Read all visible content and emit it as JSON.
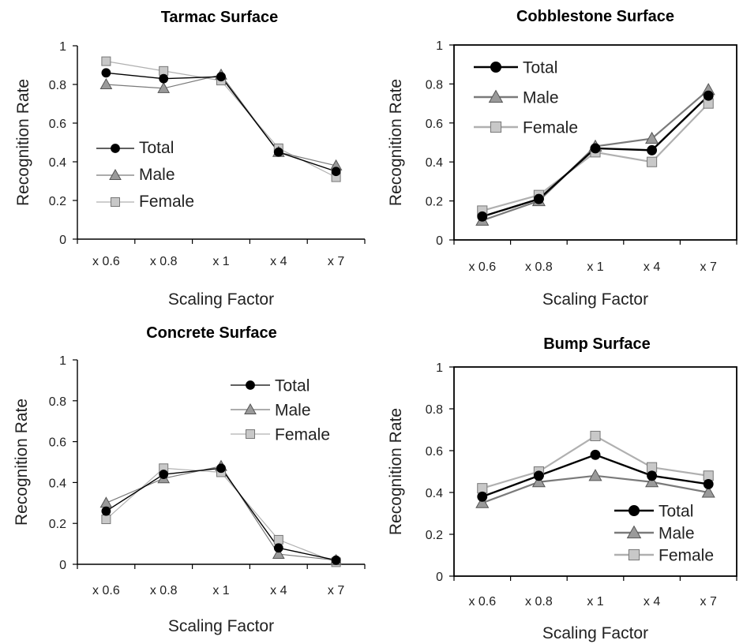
{
  "chart_data": [
    {
      "type": "line",
      "title": "Tarmac Surface",
      "xlabel": "Scaling Factor",
      "ylabel": "Recognition Rate",
      "categories": [
        "x 0.6",
        "x 0.8",
        "x 1",
        "x 4",
        "x 7"
      ],
      "ylim": [
        0,
        1
      ],
      "yticks": [
        "0",
        "0.2",
        "0.4",
        "0.6",
        "0.8",
        "1"
      ],
      "legend_position": "left",
      "series": [
        {
          "name": "Total",
          "values": [
            0.86,
            0.83,
            0.84,
            0.45,
            0.35
          ],
          "color": "#000000",
          "marker": "circle"
        },
        {
          "name": "Male",
          "values": [
            0.8,
            0.78,
            0.85,
            0.45,
            0.38
          ],
          "color": "#7a7a7a",
          "marker": "triangle"
        },
        {
          "name": "Female",
          "values": [
            0.92,
            0.87,
            0.82,
            0.47,
            0.32
          ],
          "color": "#b0b0b0",
          "marker": "square"
        }
      ]
    },
    {
      "type": "line",
      "title": "Cobblestone Surface",
      "xlabel": "Scaling Factor",
      "ylabel": "Recognition Rate",
      "categories": [
        "x 0.6",
        "x 0.8",
        "x 1",
        "x 4",
        "x 7"
      ],
      "ylim": [
        0,
        1
      ],
      "yticks": [
        "0",
        "0.2",
        "0.4",
        "0.6",
        "0.8",
        "1"
      ],
      "legend_position": "top-left",
      "series": [
        {
          "name": "Total",
          "values": [
            0.12,
            0.21,
            0.47,
            0.46,
            0.74
          ],
          "color": "#000000",
          "marker": "circle"
        },
        {
          "name": "Male",
          "values": [
            0.1,
            0.2,
            0.48,
            0.52,
            0.77
          ],
          "color": "#7a7a7a",
          "marker": "triangle"
        },
        {
          "name": "Female",
          "values": [
            0.15,
            0.23,
            0.45,
            0.4,
            0.7
          ],
          "color": "#b0b0b0",
          "marker": "square"
        }
      ]
    },
    {
      "type": "line",
      "title": "Concrete Surface",
      "xlabel": "Scaling Factor",
      "ylabel": "Recognition Rate",
      "categories": [
        "x 0.6",
        "x 0.8",
        "x 1",
        "x 4",
        "x 7"
      ],
      "ylim": [
        0,
        1
      ],
      "yticks": [
        "0",
        "0.2",
        "0.4",
        "0.6",
        "0.8",
        "1"
      ],
      "legend_position": "top-right",
      "series": [
        {
          "name": "Total",
          "values": [
            0.26,
            0.44,
            0.47,
            0.08,
            0.02
          ],
          "color": "#000000",
          "marker": "circle"
        },
        {
          "name": "Male",
          "values": [
            0.3,
            0.42,
            0.48,
            0.05,
            0.02
          ],
          "color": "#7a7a7a",
          "marker": "triangle"
        },
        {
          "name": "Female",
          "values": [
            0.22,
            0.47,
            0.45,
            0.12,
            0.01
          ],
          "color": "#b0b0b0",
          "marker": "square"
        }
      ]
    },
    {
      "type": "line",
      "title": "Bump Surface",
      "xlabel": "Scaling Factor",
      "ylabel": "Recognition Rate",
      "categories": [
        "x 0.6",
        "x 0.8",
        "x 1",
        "x 4",
        "x 7"
      ],
      "ylim": [
        0,
        1
      ],
      "yticks": [
        "0",
        "0.2",
        "0.4",
        "0.6",
        "0.8",
        "1"
      ],
      "legend_position": "bottom-right",
      "series": [
        {
          "name": "Total",
          "values": [
            0.38,
            0.48,
            0.58,
            0.48,
            0.44
          ],
          "color": "#000000",
          "marker": "circle"
        },
        {
          "name": "Male",
          "values": [
            0.35,
            0.45,
            0.48,
            0.45,
            0.4
          ],
          "color": "#7a7a7a",
          "marker": "triangle"
        },
        {
          "name": "Female",
          "values": [
            0.42,
            0.5,
            0.67,
            0.52,
            0.48
          ],
          "color": "#b0b0b0",
          "marker": "square"
        }
      ]
    }
  ]
}
